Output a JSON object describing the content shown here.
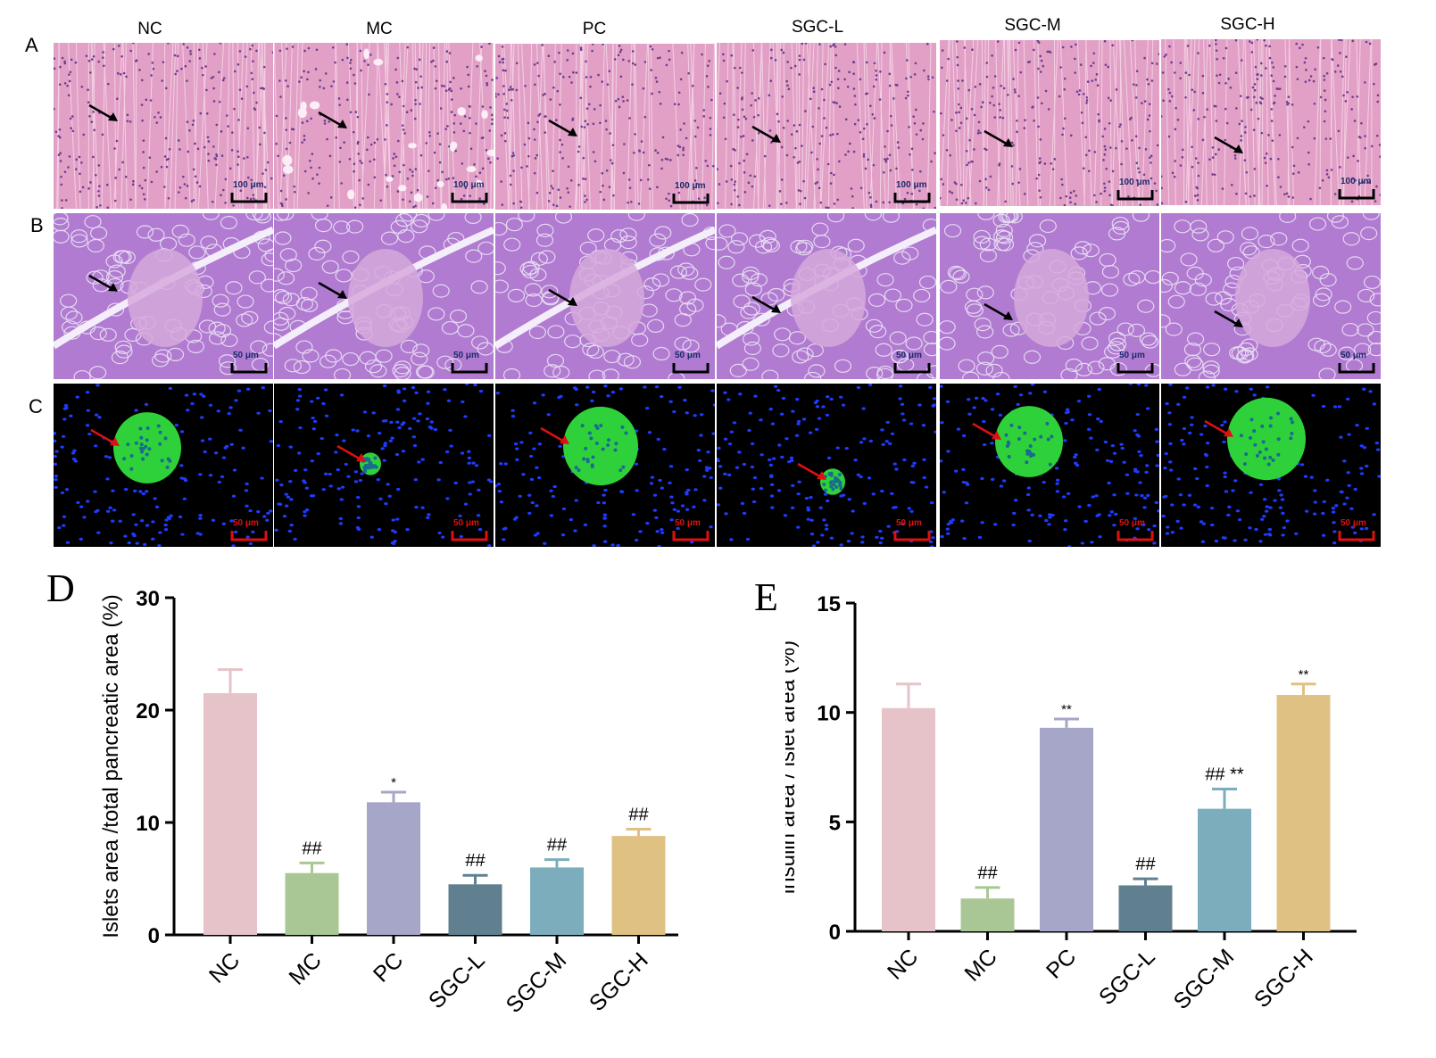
{
  "panels": {
    "a": "A",
    "b": "B",
    "c": "C",
    "d": "D",
    "e": "E"
  },
  "columns": [
    "NC",
    "MC",
    "PC",
    "SGC-L",
    "SGC-M",
    "SGC-H"
  ],
  "scale_bars": {
    "row_a": "100 μm",
    "row_b": "50 μm",
    "row_c": "50 μm"
  },
  "colors": {
    "he_liver": "#e2a0c7",
    "he_pancreas": "#b07bd0",
    "fluor_background": "#000000",
    "fluor_nuclei": "#1e3cff",
    "fluor_insulin": "#2fd13a",
    "arrow_black": "#000000",
    "arrow_red": "#e01010",
    "scale_bar_black": "#000000",
    "scale_bar_red": "#e01010"
  },
  "chart_data": [
    {
      "type": "bar",
      "panel": "D",
      "categories": [
        "NC",
        "MC",
        "PC",
        "SGC-L",
        "SGC-M",
        "SGC-H"
      ],
      "values": [
        21.5,
        5.5,
        11.8,
        4.5,
        6.0,
        8.8
      ],
      "errors": [
        2.1,
        0.9,
        0.9,
        0.8,
        0.7,
        0.6
      ],
      "annotations": [
        "",
        "##",
        "*",
        "##",
        "##",
        "##"
      ],
      "colors": [
        "#e6c3c8",
        "#a9c795",
        "#a6a6c9",
        "#60808f",
        "#7cadbc",
        "#e0c184"
      ],
      "ylabel": "Islets area /total pancreatic area (%)",
      "ylim": [
        0,
        30
      ],
      "yticks": [
        0,
        10,
        20,
        30
      ],
      "grid": false
    },
    {
      "type": "bar",
      "panel": "E",
      "categories": [
        "NC",
        "MC",
        "PC",
        "SGC-L",
        "SGC-M",
        "SGC-H"
      ],
      "values": [
        10.2,
        1.5,
        9.3,
        2.1,
        5.6,
        10.8
      ],
      "errors": [
        1.1,
        0.5,
        0.4,
        0.3,
        0.9,
        0.5
      ],
      "annotations": [
        "",
        "##",
        "**",
        "##",
        "## **",
        "**"
      ],
      "colors": [
        "#e6c3c8",
        "#a9c795",
        "#a6a6c9",
        "#60808f",
        "#7cadbc",
        "#e0c184"
      ],
      "ylabel": "insulin area / islet area (%)",
      "ylim": [
        0,
        15
      ],
      "yticks": [
        0,
        5,
        10,
        15
      ],
      "grid": false
    }
  ]
}
